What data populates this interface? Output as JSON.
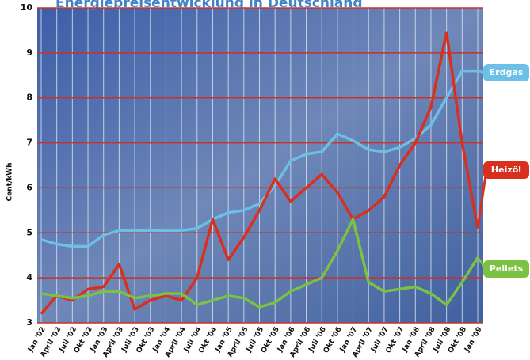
{
  "chart_data": {
    "type": "line",
    "title": "Energiepreisentwicklung in Deutschland",
    "y_label": "Cent/kWh",
    "categories": [
      "Jan '02",
      "April '02",
      "Juli '02",
      "Okt '02",
      "Jan '03",
      "April '03",
      "Juli '03",
      "Okt '03",
      "Jan '04",
      "April '04",
      "Juli '04",
      "Okt '04",
      "Jan '05",
      "April '05",
      "Juli '05",
      "Okt '05",
      "Jan '06",
      "April '06",
      "Juli '06",
      "Okt '06",
      "Jan '07",
      "April '07",
      "Juli '07",
      "Okt '07",
      "Jan '08",
      "April '08",
      "Juli '08",
      "Okt '08",
      "Jan '09"
    ],
    "series": [
      {
        "name": "Erdgas",
        "color": "#6cc0e8",
        "values": [
          4.85,
          4.75,
          4.7,
          4.7,
          4.95,
          5.05,
          5.05,
          5.05,
          5.05,
          5.05,
          5.1,
          5.3,
          5.45,
          5.5,
          5.65,
          6.05,
          6.6,
          6.75,
          6.8,
          7.2,
          7.05,
          6.85,
          6.8,
          6.9,
          7.1,
          7.4,
          8.0,
          8.6,
          8.6
        ]
      },
      {
        "name": "Heizöl",
        "color": "#d8301e",
        "values": [
          3.2,
          3.6,
          3.5,
          3.75,
          3.8,
          4.3,
          3.3,
          3.5,
          3.6,
          3.5,
          4.0,
          5.3,
          4.4,
          4.9,
          5.5,
          6.2,
          5.7,
          6.0,
          6.3,
          5.9,
          5.3,
          5.5,
          5.8,
          6.5,
          7.0,
          7.8,
          9.45,
          7.0,
          5.1
        ]
      },
      {
        "name": "Pellets",
        "color": "#7cc242",
        "values": [
          3.65,
          3.6,
          3.55,
          3.6,
          3.7,
          3.7,
          3.55,
          3.6,
          3.65,
          3.65,
          3.4,
          3.5,
          3.6,
          3.55,
          3.35,
          3.45,
          3.7,
          3.85,
          4.0,
          4.6,
          5.3,
          3.9,
          3.7,
          3.75,
          3.8,
          3.65,
          3.4,
          3.9,
          4.45
        ]
      }
    ],
    "ylim": [
      3,
      10
    ],
    "yticks": [
      3,
      4,
      5,
      6,
      7,
      8,
      9,
      10
    ],
    "grid": true
  }
}
